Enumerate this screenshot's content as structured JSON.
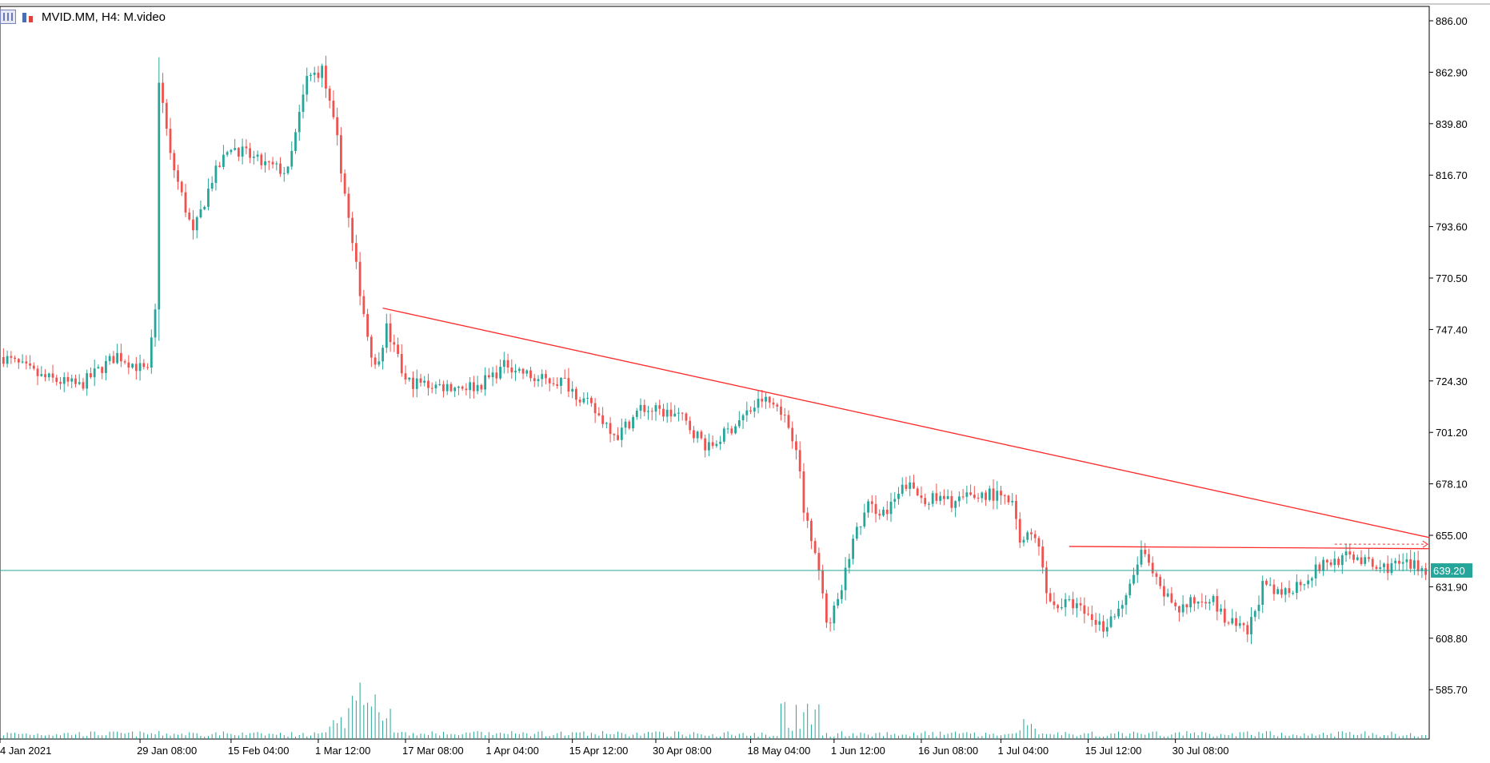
{
  "header": {
    "title": "MVID.MM, H4:  M.video",
    "icons": [
      "table-icon",
      "candlestick-chart-icon"
    ]
  },
  "colors": {
    "bull": "#26a69a",
    "bear": "#ef5350",
    "trendline": "#ff2a2a",
    "price_line": "#26a69a",
    "axis": "#000000"
  },
  "chart_data": {
    "type": "candlestick",
    "symbol": "MVID.MM",
    "timeframe": "H4",
    "description": "M.video",
    "current_price": "639.20",
    "y_ticks": [
      "886.00",
      "862.90",
      "839.80",
      "816.70",
      "793.60",
      "770.50",
      "747.40",
      "724.30",
      "701.20",
      "678.10",
      "655.00",
      "631.90",
      "608.80",
      "585.70"
    ],
    "ylim": [
      564,
      890
    ],
    "x_ticks": [
      "4 Jan 2021",
      "29 Jan 08:00",
      "15 Feb 04:00",
      "1 Mar 12:00",
      "17 Mar 08:00",
      "1 Apr 04:00",
      "15 Apr 12:00",
      "30 Apr 08:00",
      "18 May 04:00",
      "1 Jun 12:00",
      "16 Jun 08:00",
      "1 Jul 04:00",
      "15 Jul 12:00",
      "30 Jul 08:00"
    ],
    "bars": 376,
    "close_path": [
      {
        "i": 0,
        "p": 735
      },
      {
        "i": 10,
        "p": 726
      },
      {
        "i": 20,
        "p": 722
      },
      {
        "i": 30,
        "p": 736
      },
      {
        "i": 38,
        "p": 728
      },
      {
        "i": 40,
        "p": 755
      },
      {
        "i": 41,
        "p": 860
      },
      {
        "i": 44,
        "p": 825
      },
      {
        "i": 50,
        "p": 790
      },
      {
        "i": 55,
        "p": 815
      },
      {
        "i": 60,
        "p": 830
      },
      {
        "i": 68,
        "p": 822
      },
      {
        "i": 75,
        "p": 818
      },
      {
        "i": 80,
        "p": 860
      },
      {
        "i": 84,
        "p": 864
      },
      {
        "i": 88,
        "p": 832
      },
      {
        "i": 92,
        "p": 785
      },
      {
        "i": 96,
        "p": 745
      },
      {
        "i": 98,
        "p": 730
      },
      {
        "i": 101,
        "p": 748
      },
      {
        "i": 106,
        "p": 724
      },
      {
        "i": 115,
        "p": 722
      },
      {
        "i": 125,
        "p": 722
      },
      {
        "i": 133,
        "p": 732
      },
      {
        "i": 140,
        "p": 725
      },
      {
        "i": 148,
        "p": 724
      },
      {
        "i": 155,
        "p": 712
      },
      {
        "i": 162,
        "p": 700
      },
      {
        "i": 168,
        "p": 712
      },
      {
        "i": 178,
        "p": 709
      },
      {
        "i": 186,
        "p": 694
      },
      {
        "i": 193,
        "p": 705
      },
      {
        "i": 200,
        "p": 716
      },
      {
        "i": 205,
        "p": 712
      },
      {
        "i": 209,
        "p": 696
      },
      {
        "i": 211,
        "p": 666
      },
      {
        "i": 214,
        "p": 650
      },
      {
        "i": 217,
        "p": 615
      },
      {
        "i": 220,
        "p": 624
      },
      {
        "i": 224,
        "p": 653
      },
      {
        "i": 228,
        "p": 668
      },
      {
        "i": 233,
        "p": 665
      },
      {
        "i": 238,
        "p": 678
      },
      {
        "i": 242,
        "p": 672
      },
      {
        "i": 250,
        "p": 670
      },
      {
        "i": 260,
        "p": 674
      },
      {
        "i": 266,
        "p": 669
      },
      {
        "i": 268,
        "p": 652
      },
      {
        "i": 272,
        "p": 656
      },
      {
        "i": 276,
        "p": 624
      },
      {
        "i": 282,
        "p": 624
      },
      {
        "i": 290,
        "p": 614
      },
      {
        "i": 296,
        "p": 626
      },
      {
        "i": 300,
        "p": 648
      },
      {
        "i": 305,
        "p": 630
      },
      {
        "i": 310,
        "p": 622
      },
      {
        "i": 318,
        "p": 628
      },
      {
        "i": 322,
        "p": 617
      },
      {
        "i": 328,
        "p": 611
      },
      {
        "i": 332,
        "p": 632
      },
      {
        "i": 336,
        "p": 628
      },
      {
        "i": 342,
        "p": 634
      },
      {
        "i": 348,
        "p": 642
      },
      {
        "i": 356,
        "p": 646
      },
      {
        "i": 362,
        "p": 640
      },
      {
        "i": 368,
        "p": 642
      },
      {
        "i": 375,
        "p": 640
      }
    ],
    "trendline": {
      "start": {
        "bar": 100,
        "price": 757
      },
      "end": {
        "bar": 376,
        "price": 654
      }
    },
    "resistance_line": {
      "start": {
        "bar": 281,
        "price": 650
      },
      "end": {
        "bar": 376,
        "price": 649
      }
    },
    "dashed_line": {
      "start": {
        "bar": 351,
        "price": 651
      },
      "end": {
        "bar": 376,
        "price": 651
      }
    },
    "horizontal_level": 639.2,
    "volume_profile": "spike around 1 Mar (~bars 88-102); elevated around 18 May"
  }
}
